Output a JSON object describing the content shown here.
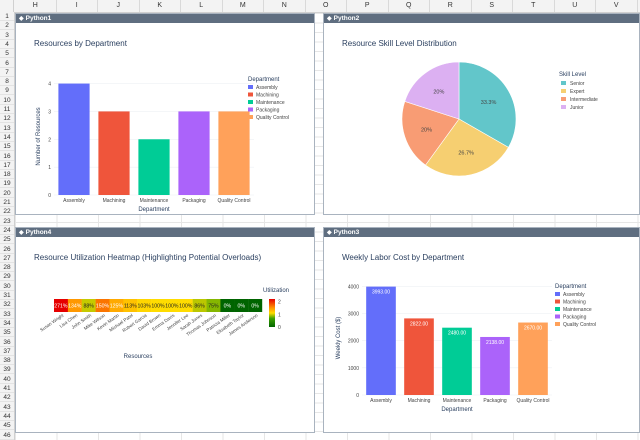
{
  "sheet": {
    "columns": [
      "H",
      "I",
      "J",
      "K",
      "L",
      "M",
      "N",
      "O",
      "P",
      "Q",
      "R",
      "S",
      "T",
      "U",
      "V"
    ],
    "rows": [
      "1",
      "2",
      "3",
      "4",
      "5",
      "6",
      "7",
      "8",
      "9",
      "10",
      "11",
      "12",
      "13",
      "14",
      "15",
      "16",
      "17",
      "18",
      "19",
      "20",
      "21",
      "22",
      "23",
      "24",
      "25",
      "26",
      "27",
      "28",
      "29",
      "30",
      "31",
      "32",
      "33",
      "34",
      "35",
      "36",
      "37",
      "38",
      "39",
      "40",
      "41",
      "42",
      "43",
      "44",
      "45",
      "46"
    ]
  },
  "panels": {
    "p1": "Python1",
    "p2": "Python2",
    "p4": "Python4",
    "p3": "Python3"
  },
  "chart_data": [
    {
      "id": "resources",
      "type": "bar",
      "title": "Resources by Department",
      "xlabel": "Department",
      "ylabel": "Number of Resources",
      "categories": [
        "Assembly",
        "Machining",
        "Maintenance",
        "Packaging",
        "Quality Control"
      ],
      "values": [
        4,
        3,
        2,
        3,
        3
      ],
      "colors": [
        "#636efa",
        "#ef553b",
        "#00cc96",
        "#ab63fa",
        "#ffa15a"
      ],
      "ylim": [
        0,
        4.2
      ],
      "yticks": [
        "0",
        "1",
        "2",
        "3",
        "4"
      ],
      "legend_title": "Department",
      "legend": [
        "Assembly",
        "Machining",
        "Maintenance",
        "Packaging",
        "Quality Control"
      ]
    },
    {
      "id": "skills",
      "type": "pie",
      "title": "Resource Skill Level Distribution",
      "legend_title": "Skill Level",
      "labels": [
        "Senior",
        "Expert",
        "Intermediate",
        "Junior"
      ],
      "values": [
        33.3,
        26.7,
        20,
        20
      ],
      "slice_labels": [
        "33.3%",
        "26.7%",
        "20%",
        "20%"
      ],
      "colors": [
        "#62c6ca",
        "#f6cf71",
        "#f89c74",
        "#dcb0f2"
      ]
    },
    {
      "id": "utilization",
      "type": "heatmap",
      "title": "Resource Utilization Heatmap (Highlighting Potential Overloads)",
      "xlabel": "Resources",
      "colorbar_title": "Utilization",
      "colorbar_ticks": [
        "2",
        "1",
        "0"
      ],
      "resources": [
        "Susan Wright",
        "Lisa Chen",
        "John Smith",
        "Mike Wilson",
        "Kevin Martin",
        "Michael Patel",
        "Robert Garcia",
        "David Brown",
        "Emma Davis",
        "Jennifer Lee",
        "Sarah Jones",
        "Thomas Johnson",
        "Patricia Miller",
        "Elizabeth Taylor",
        "James Anderson"
      ],
      "values": [
        2.71,
        1.34,
        0.88,
        1.5,
        1.25,
        1.13,
        1.03,
        1.0,
        1.0,
        1.0,
        0.86,
        0.75,
        0,
        0,
        0
      ],
      "cell_labels": [
        "271%",
        "134%",
        "88%",
        "150%",
        "125%",
        "113%",
        "103%",
        "100%",
        "100%",
        "100%",
        "86%",
        "75%",
        "0%",
        "0%",
        "0%"
      ]
    },
    {
      "id": "labor",
      "type": "bar",
      "title": "Weekly Labor Cost by Department",
      "xlabel": "Department",
      "ylabel": "Weekly Cost ($)",
      "categories": [
        "Assembly",
        "Machining",
        "Maintenance",
        "Packaging",
        "Quality Control"
      ],
      "values": [
        3993.0,
        2822.0,
        2480.0,
        2138.0,
        2670.0
      ],
      "value_labels": [
        "3993.00",
        "2822.00",
        "2480.00",
        "2138.00",
        "2670.00"
      ],
      "colors": [
        "#636efa",
        "#ef553b",
        "#00cc96",
        "#ab63fa",
        "#ffa15a"
      ],
      "ylim": [
        0,
        4200
      ],
      "yticks": [
        "0",
        "1000",
        "2000",
        "3000",
        "4000"
      ],
      "legend_title": "Department",
      "legend": [
        "Assembly",
        "Machining",
        "Maintenance",
        "Packaging",
        "Quality Control"
      ]
    }
  ]
}
